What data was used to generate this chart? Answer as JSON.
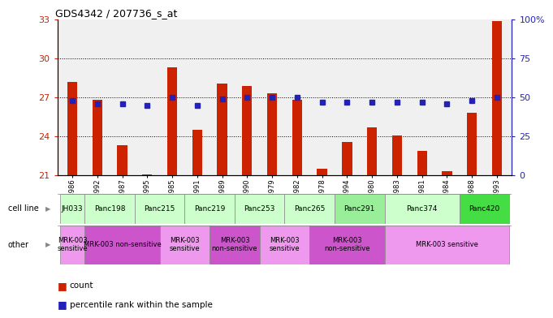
{
  "title": "GDS4342 / 207736_s_at",
  "gsm_labels": [
    "GSM924986",
    "GSM924992",
    "GSM924987",
    "GSM924995",
    "GSM924985",
    "GSM924991",
    "GSM924989",
    "GSM924990",
    "GSM924979",
    "GSM924982",
    "GSM924978",
    "GSM924994",
    "GSM924980",
    "GSM924983",
    "GSM924981",
    "GSM924984",
    "GSM924988",
    "GSM924993"
  ],
  "count_values": [
    28.2,
    26.8,
    23.3,
    21.1,
    29.3,
    24.5,
    28.1,
    27.9,
    27.3,
    26.8,
    21.5,
    23.6,
    24.7,
    24.1,
    22.9,
    21.3,
    25.8,
    32.9
  ],
  "percentile_values": [
    48,
    46,
    46,
    45,
    50,
    45,
    49,
    50,
    50,
    50,
    47,
    47,
    47,
    47,
    47,
    46,
    48,
    50
  ],
  "cell_lines": [
    {
      "name": "JH033",
      "start": 0,
      "end": 1,
      "color": "#ccffcc"
    },
    {
      "name": "Panc198",
      "start": 1,
      "end": 3,
      "color": "#ccffcc"
    },
    {
      "name": "Panc215",
      "start": 3,
      "end": 5,
      "color": "#ccffcc"
    },
    {
      "name": "Panc219",
      "start": 5,
      "end": 7,
      "color": "#ccffcc"
    },
    {
      "name": "Panc253",
      "start": 7,
      "end": 9,
      "color": "#ccffcc"
    },
    {
      "name": "Panc265",
      "start": 9,
      "end": 11,
      "color": "#ccffcc"
    },
    {
      "name": "Panc291",
      "start": 11,
      "end": 13,
      "color": "#99ee99"
    },
    {
      "name": "Panc374",
      "start": 13,
      "end": 16,
      "color": "#ccffcc"
    },
    {
      "name": "Panc420",
      "start": 16,
      "end": 18,
      "color": "#44dd44"
    }
  ],
  "other_rows": [
    {
      "text": "MRK-003\nsensitive",
      "start": 0,
      "end": 1,
      "color": "#ee99ee"
    },
    {
      "text": "MRK-003 non-sensitive",
      "start": 1,
      "end": 4,
      "color": "#cc55cc"
    },
    {
      "text": "MRK-003\nsensitive",
      "start": 4,
      "end": 6,
      "color": "#ee99ee"
    },
    {
      "text": "MRK-003\nnon-sensitive",
      "start": 6,
      "end": 8,
      "color": "#cc55cc"
    },
    {
      "text": "MRK-003\nsensitive",
      "start": 8,
      "end": 10,
      "color": "#ee99ee"
    },
    {
      "text": "MRK-003\nnon-sensitive",
      "start": 10,
      "end": 13,
      "color": "#cc55cc"
    },
    {
      "text": "MRK-003 sensitive",
      "start": 13,
      "end": 18,
      "color": "#ee99ee"
    }
  ],
  "ylim": [
    21,
    33
  ],
  "yticks_left": [
    21,
    24,
    27,
    30,
    33
  ],
  "yticks_right": [
    0,
    25,
    50,
    75,
    100
  ],
  "bar_color": "#cc2200",
  "dot_color": "#2222bb",
  "axis_bg": "#f0f0f0"
}
